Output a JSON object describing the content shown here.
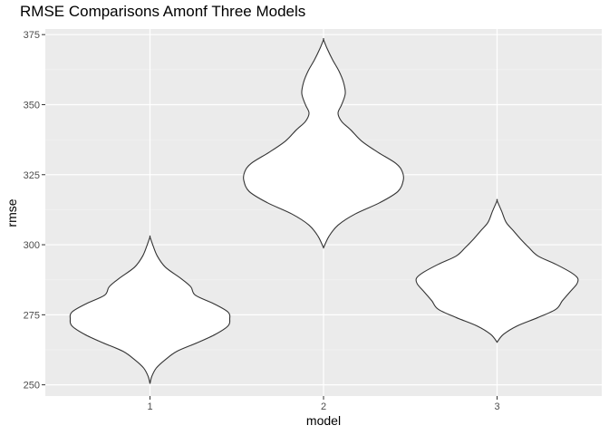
{
  "chart_data": {
    "type": "violin",
    "title": "RMSE Comparisons Amonf Three Models",
    "xlabel": "model",
    "ylabel": "rmse",
    "categories": [
      "1",
      "2",
      "3"
    ],
    "ylim": [
      246,
      377
    ],
    "yticks": [
      250,
      275,
      300,
      325,
      350,
      375
    ],
    "grid": true,
    "colors": {
      "panel": "#ebebeb",
      "grid_major": "#ffffff",
      "grid_minor": "#f2f2f2",
      "outline": "#333333",
      "fill": "#ffffff"
    },
    "series": [
      {
        "category": "1",
        "min": 250.4,
        "max": 302.8,
        "profile": [
          [
            250.4,
            0.0
          ],
          [
            253,
            0.02
          ],
          [
            256,
            0.07
          ],
          [
            259,
            0.17
          ],
          [
            262,
            0.3
          ],
          [
            265,
            0.52
          ],
          [
            268,
            0.72
          ],
          [
            271,
            0.86
          ],
          [
            273.5,
            0.88
          ],
          [
            276,
            0.86
          ],
          [
            279,
            0.7
          ],
          [
            282,
            0.5
          ],
          [
            285,
            0.45
          ],
          [
            288,
            0.34
          ],
          [
            292,
            0.17
          ],
          [
            296,
            0.08
          ],
          [
            300,
            0.03
          ],
          [
            302.8,
            0.0
          ]
        ]
      },
      {
        "category": "2",
        "min": 298.9,
        "max": 373.2,
        "profile": [
          [
            298.9,
            0.0
          ],
          [
            303,
            0.06
          ],
          [
            307,
            0.16
          ],
          [
            311,
            0.35
          ],
          [
            315,
            0.62
          ],
          [
            319,
            0.82
          ],
          [
            323,
            0.88
          ],
          [
            326,
            0.87
          ],
          [
            329,
            0.8
          ],
          [
            333,
            0.6
          ],
          [
            337,
            0.42
          ],
          [
            341,
            0.3
          ],
          [
            344,
            0.2
          ],
          [
            347,
            0.16
          ],
          [
            350,
            0.2
          ],
          [
            354,
            0.24
          ],
          [
            358,
            0.22
          ],
          [
            362,
            0.17
          ],
          [
            366,
            0.1
          ],
          [
            370,
            0.04
          ],
          [
            373.2,
            0.0
          ]
        ]
      },
      {
        "category": "3",
        "min": 265.2,
        "max": 315.7,
        "profile": [
          [
            265.2,
            0.0
          ],
          [
            268,
            0.07
          ],
          [
            271,
            0.22
          ],
          [
            274,
            0.45
          ],
          [
            277,
            0.65
          ],
          [
            280,
            0.72
          ],
          [
            283,
            0.8
          ],
          [
            286,
            0.88
          ],
          [
            288,
            0.89
          ],
          [
            290,
            0.82
          ],
          [
            293,
            0.65
          ],
          [
            296,
            0.45
          ],
          [
            299,
            0.35
          ],
          [
            302,
            0.26
          ],
          [
            305,
            0.18
          ],
          [
            308,
            0.1
          ],
          [
            312,
            0.05
          ],
          [
            315.7,
            0.0
          ]
        ]
      }
    ]
  }
}
